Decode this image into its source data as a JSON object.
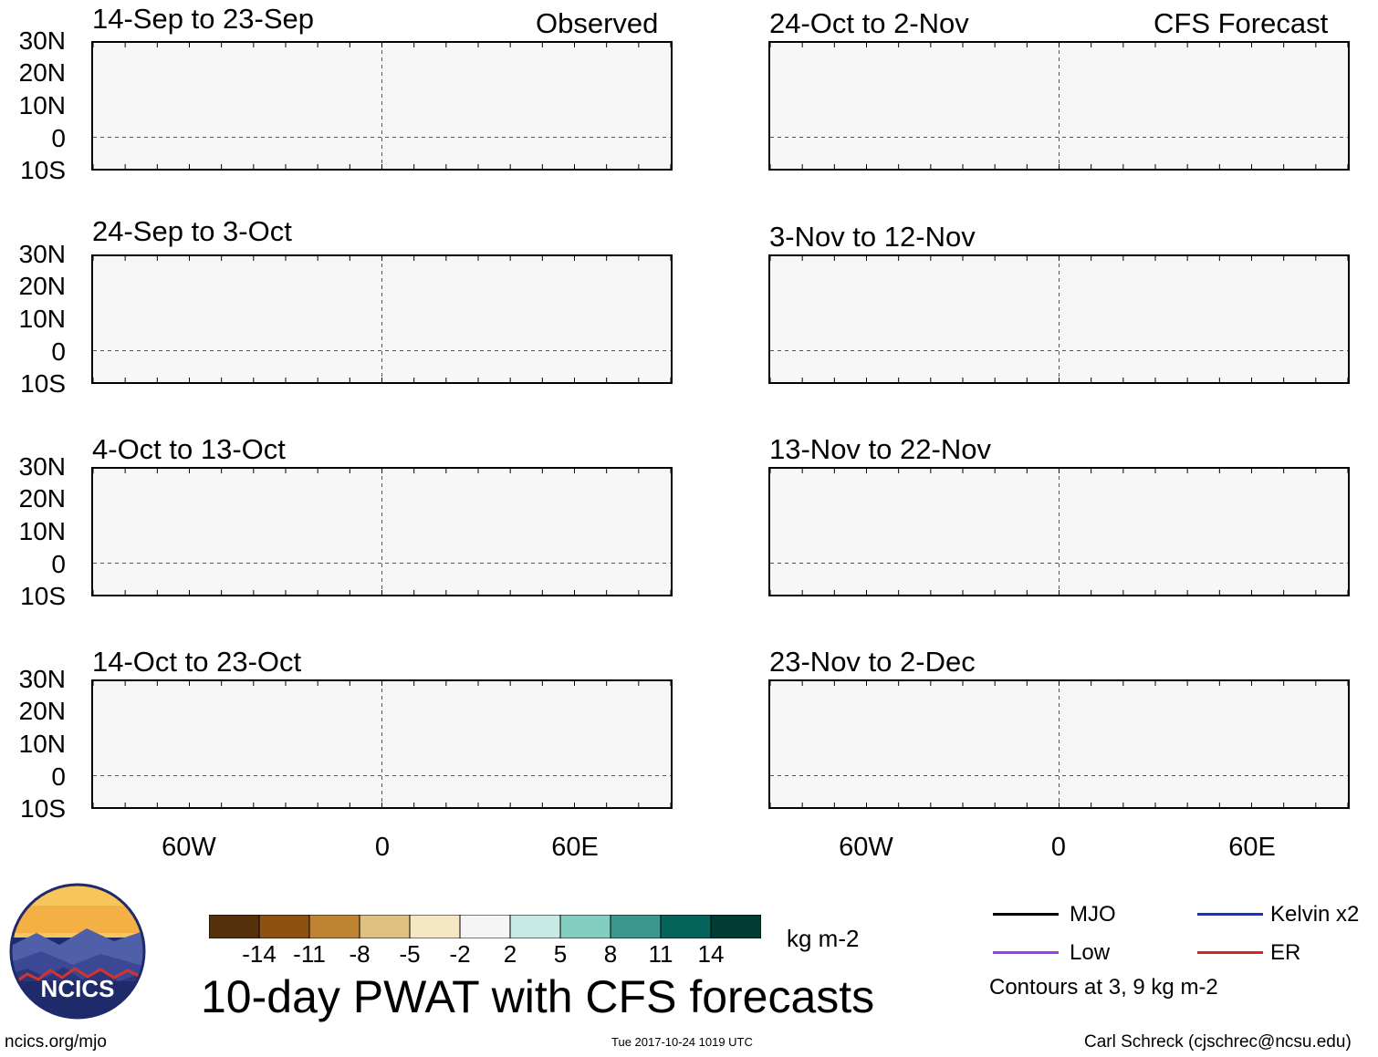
{
  "main_title": "10-day PWAT with CFS forecasts",
  "column_headers": {
    "left": "Observed",
    "right": "CFS Forecast"
  },
  "panels_left": [
    {
      "title": "14-Sep to 23-Sep"
    },
    {
      "title": "24-Sep to 3-Oct"
    },
    {
      "title": "4-Oct to 13-Oct"
    },
    {
      "title": "14-Oct to 23-Oct"
    }
  ],
  "panels_right": [
    {
      "title": "24-Oct to 2-Nov"
    },
    {
      "title": "3-Nov to 12-Nov"
    },
    {
      "title": "13-Nov to 22-Nov"
    },
    {
      "title": "23-Nov to 2-Dec"
    }
  ],
  "y_axis_labels": [
    "30N",
    "20N",
    "10N",
    "0",
    "10S"
  ],
  "x_axis_labels": [
    "60W",
    "0",
    "60E"
  ],
  "colorbar": {
    "colors": [
      "#54310b",
      "#8d520f",
      "#be8434",
      "#dec17f",
      "#f6e7c4",
      "#f5f5f5",
      "#c9eae4",
      "#83ccc0",
      "#3c978e",
      "#05655d",
      "#003c31"
    ],
    "ticks": [
      "-14",
      "-11",
      "-8",
      "-5",
      "-2",
      "2",
      "5",
      "8",
      "11",
      "14"
    ],
    "units": "kg m-2"
  },
  "legend": {
    "items": [
      {
        "label": "MJO",
        "color": "#000000"
      },
      {
        "label": "Kelvin x2",
        "color": "#1531c9"
      },
      {
        "label": "Low",
        "color": "#9a3df0"
      },
      {
        "label": "ER",
        "color": "#e0201b"
      }
    ],
    "note": "Contours at 3, 9 kg m-2"
  },
  "logo": {
    "text": "NCICS"
  },
  "footer": {
    "url": "ncics.org/mjo",
    "timestamp": "Tue 2017-10-24 1019 UTC",
    "credit": "Carl Schreck (cjschrec@ncsu.edu)"
  }
}
